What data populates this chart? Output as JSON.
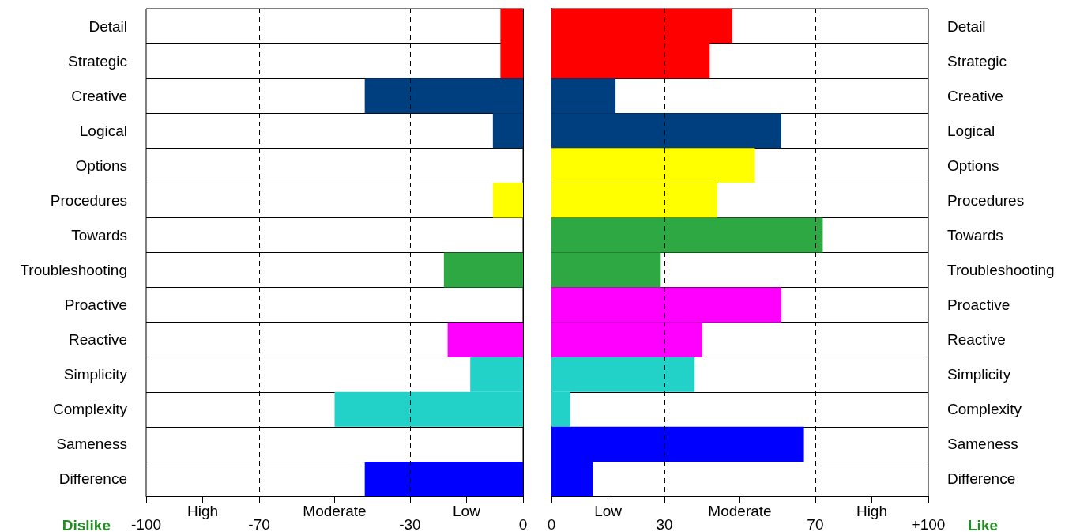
{
  "chart_data": [
    {
      "type": "bar",
      "orientation": "horizontal",
      "xlabel": "Dislike",
      "categories": [
        "Detail",
        "Strategic",
        "Creative",
        "Logical",
        "Options",
        "Procedures",
        "Towards",
        "Troubleshooting",
        "Proactive",
        "Reactive",
        "Simplicity",
        "Complexity",
        "Sameness",
        "Difference"
      ],
      "values": [
        -6,
        -6,
        -42,
        -8,
        0,
        -8,
        0,
        -21,
        0,
        -20,
        -14,
        -50,
        0,
        -42
      ],
      "colors": [
        "#ff0000",
        "#ff0000",
        "#003f7f",
        "#003f7f",
        "#ffff00",
        "#ffff00",
        "#2ea843",
        "#2ea843",
        "#ff00ff",
        "#ff00ff",
        "#22d1c8",
        "#22d1c8",
        "#0000ff",
        "#0000ff"
      ],
      "xlim": [
        -100,
        0
      ],
      "xticks": [
        -100,
        {
          "value": -85,
          "label": null
        },
        -70,
        {
          "value": -50,
          "label": null
        },
        -30,
        {
          "value": -15,
          "label": null
        },
        0
      ],
      "annotations": [
        "High",
        "Moderate",
        "Low"
      ],
      "grid": "x"
    },
    {
      "type": "bar",
      "orientation": "horizontal",
      "xlabel": "Like",
      "categories": [
        "Detail",
        "Strategic",
        "Creative",
        "Logical",
        "Options",
        "Procedures",
        "Towards",
        "Troubleshooting",
        "Proactive",
        "Reactive",
        "Simplicity",
        "Complexity",
        "Sameness",
        "Difference"
      ],
      "values": [
        48,
        42,
        17,
        61,
        54,
        44,
        72,
        29,
        61,
        40,
        38,
        5,
        67,
        11
      ],
      "colors": [
        "#ff0000",
        "#ff0000",
        "#003f7f",
        "#003f7f",
        "#ffff00",
        "#ffff00",
        "#2ea843",
        "#2ea843",
        "#ff00ff",
        "#ff00ff",
        "#22d1c8",
        "#22d1c8",
        "#0000ff",
        "#0000ff"
      ],
      "xlim": [
        0,
        100
      ],
      "xticks": [
        0,
        {
          "value": 15,
          "label": null
        },
        30,
        {
          "value": 50,
          "label": null
        },
        70,
        {
          "value": 85,
          "label": null
        },
        {
          "value": 100,
          "label": "+100"
        }
      ],
      "annotations": [
        "Low",
        "Moderate",
        "High"
      ],
      "grid": "x"
    }
  ]
}
